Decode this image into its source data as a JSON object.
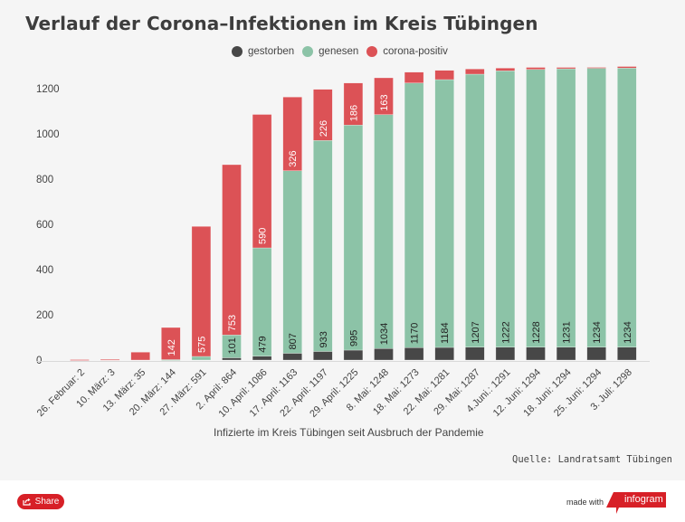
{
  "header": {
    "title": "Verlauf der Corona–Infektionen im Kreis Tübingen"
  },
  "legend": [
    {
      "label": "gestorben",
      "color": "#474747"
    },
    {
      "label": "genesen",
      "color": "#8cc3a7"
    },
    {
      "label": "corona-positiv",
      "color": "#dc5256"
    }
  ],
  "chart_data": {
    "type": "bar",
    "stacked": true,
    "title": "Verlauf der Corona–Infektionen im Kreis Tübingen",
    "xlabel": "Infizierte im Kreis Tübingen seit Ausbruch der Pandemie",
    "ylabel": "",
    "ylim": [
      0,
      1300
    ],
    "yticks": [
      0,
      200,
      400,
      600,
      800,
      1000,
      1200
    ],
    "grid": false,
    "legend_position": "top-center",
    "categories": [
      "26. Februar: 2",
      "10. März: 3",
      "13. März: 35",
      "20. März: 144",
      "27. März: 591",
      "2. April: 864",
      "10. April: 1086",
      "17. April: 1163",
      "22. April: 1197",
      "29. April: 1225",
      "8. Mai: 1248",
      "18. Mai: 1273",
      "22. Mai: 1281",
      "29. Mai: 1287",
      "4.Juni.: 1291",
      "12. Juni: 1294",
      "18. Juni: 1294",
      "25. Juni: 1294",
      "3. Juli: 1298"
    ],
    "series": [
      {
        "name": "gestorben",
        "color": "#474747",
        "values": [
          0,
          0,
          0,
          0,
          0,
          10,
          17,
          30,
          38,
          44,
          51,
          55,
          56,
          57,
          57,
          57,
          57,
          57,
          57
        ]
      },
      {
        "name": "genesen",
        "color": "#8cc3a7",
        "values": [
          0,
          0,
          0,
          2,
          16,
          101,
          479,
          807,
          933,
          995,
          1034,
          1170,
          1184,
          1207,
          1222,
          1228,
          1231,
          1234,
          1234
        ]
      },
      {
        "name": "corona-positiv",
        "color": "#dc5256",
        "values": [
          2,
          3,
          35,
          142,
          575,
          753,
          590,
          326,
          226,
          186,
          163,
          48,
          41,
          23,
          12,
          9,
          6,
          3,
          7
        ]
      }
    ],
    "data_labels": {
      "genesen": [
        null,
        null,
        null,
        null,
        null,
        "101",
        "479",
        "807",
        "933",
        "995",
        "1034",
        "1170",
        "1184",
        "1207",
        "1222",
        "1228",
        "1231",
        "1234",
        "1234"
      ],
      "corona-positiv": [
        null,
        null,
        null,
        "142",
        "575",
        "753",
        "590",
        "326",
        "226",
        "186",
        "163",
        null,
        null,
        null,
        null,
        null,
        null,
        null,
        null
      ]
    }
  },
  "footer": {
    "xaxis_title": "Infizierte im Kreis Tübingen seit Ausbruch der Pandemie",
    "source": "Quelle: Landratsamt Tübingen",
    "share_label": "Share",
    "made_with": "made with",
    "brand": "infogram",
    "brand_color": "#d72027"
  }
}
